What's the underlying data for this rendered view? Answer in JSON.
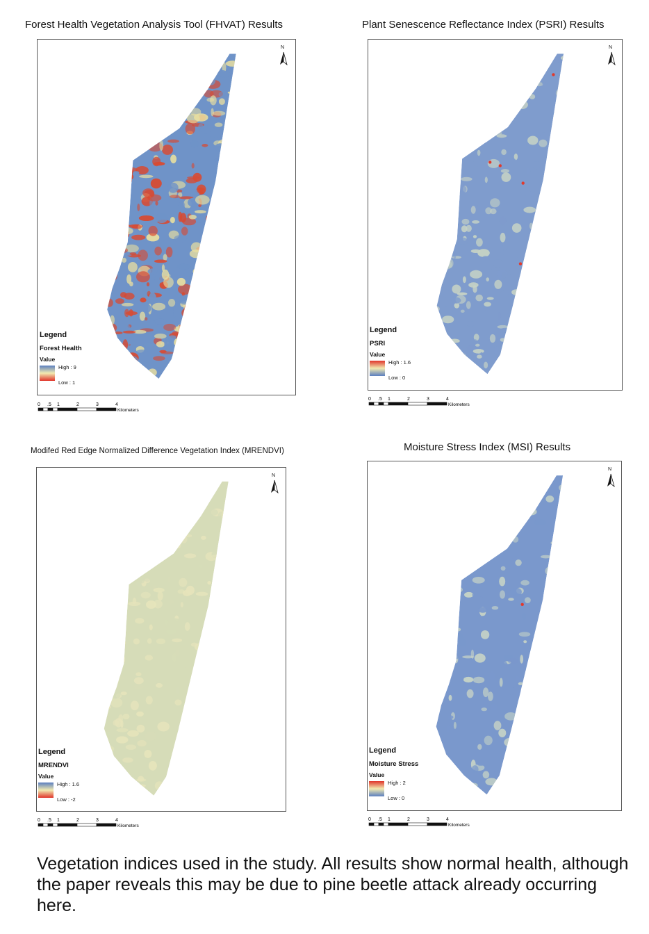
{
  "panels": [
    {
      "title": "Forest Health Vegetation Analysis Tool (FHVAT) Results",
      "north": "N",
      "legend": {
        "title": "Legend",
        "layer": "Forest Health",
        "value_label": "Value",
        "high": "High : 9",
        "low": "Low : 1"
      },
      "ramp_top_color": "#5b7fc0",
      "ramp_bottom_color": "#e0352b",
      "map_colors": [
        "#d84a32",
        "#e9dfa0",
        "#6f93c8"
      ]
    },
    {
      "title": "Plant Senescence Reflectance Index (PSRI) Results",
      "north": "N",
      "legend": {
        "title": "Legend",
        "layer": "PSRI",
        "value_label": "Value",
        "high": "High : 1.6",
        "low": "Low : 0"
      },
      "ramp_top_color": "#e0352b",
      "ramp_bottom_color": "#5b7fc0",
      "map_colors": [
        "#7f9ccd",
        "#c7d3c5",
        "#e13a2c"
      ]
    },
    {
      "title": "Modifed Red Edge Normalized Difference Vegetation Index (MRENDVI)",
      "north": "N",
      "legend": {
        "title": "Legend",
        "layer": "MRENDVI",
        "value_label": "Value",
        "high": "High : 1.6",
        "low": "Low : -2"
      },
      "ramp_top_color": "#5b7fc0",
      "ramp_bottom_color": "#e0352b",
      "map_colors": [
        "#d6dcb8",
        "#e6e4bb",
        "#c7d2c3"
      ]
    },
    {
      "title": "Moisture Stress Index (MSI) Results",
      "north": "N",
      "legend": {
        "title": "Legend",
        "layer": "Moisture Stress",
        "value_label": "Value",
        "high": "High : 2",
        "low": "Low : 0"
      },
      "ramp_top_color": "#e0352b",
      "ramp_bottom_color": "#5b7fc0",
      "map_colors": [
        "#7a98cc",
        "#c8d4c6",
        "#e13a2c"
      ]
    }
  ],
  "scale": {
    "ticks": [
      "0",
      ".5",
      "1",
      "2",
      "3",
      "4"
    ],
    "unit": "Kilometers"
  },
  "caption": "Vegetation indices used in the study.  All results show normal health, although the paper reveals this may be due to pine beetle attack already occurring here."
}
